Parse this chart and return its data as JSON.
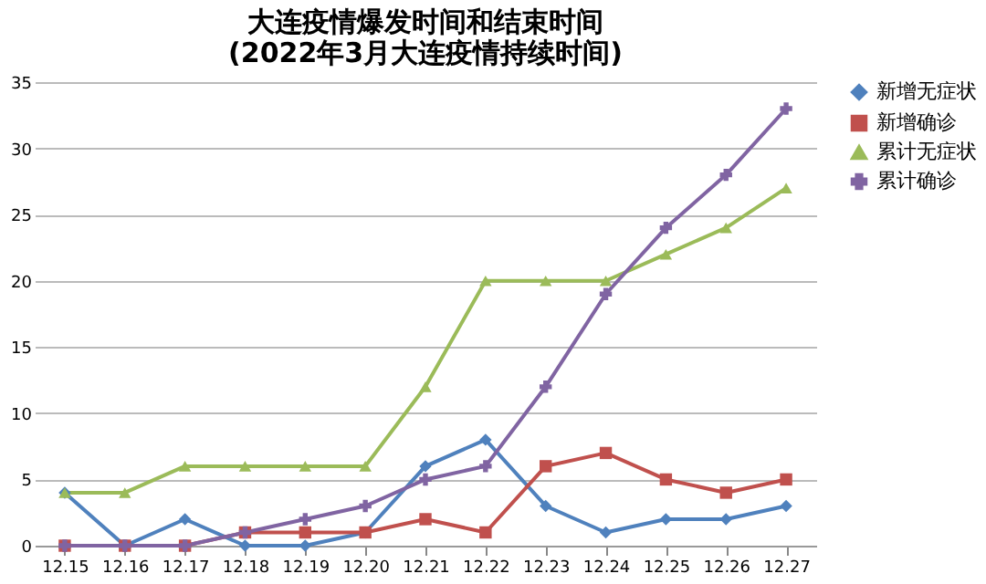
{
  "chart_data": {
    "type": "line",
    "title": "大连疫情爆发时间和结束时间(2022年3月大连疫情持续时间)",
    "categories": [
      "12.15",
      "12.16",
      "12.17",
      "12.18",
      "12.19",
      "12.20",
      "12.21",
      "12.22",
      "12.23",
      "12.24",
      "12.25",
      "12.26",
      "12.27"
    ],
    "series": [
      {
        "name": "新增无症状",
        "color": "#4f81bd",
        "marker": "diamond",
        "values": [
          4,
          0,
          2,
          0,
          0,
          1,
          6,
          8,
          3,
          1,
          2,
          2,
          3
        ]
      },
      {
        "name": "新增确诊",
        "color": "#c0504d",
        "marker": "square",
        "values": [
          0,
          0,
          0,
          1,
          1,
          1,
          2,
          1,
          6,
          7,
          5,
          4,
          5
        ]
      },
      {
        "name": "累计无症状",
        "color": "#9bbb59",
        "marker": "triangle",
        "values": [
          4,
          4,
          6,
          6,
          6,
          6,
          12,
          20,
          20,
          20,
          22,
          24,
          27
        ]
      },
      {
        "name": "累计确诊",
        "color": "#8064a2",
        "marker": "cross",
        "values": [
          0,
          0,
          0,
          1,
          2,
          3,
          5,
          6,
          12,
          19,
          24,
          28,
          33
        ]
      }
    ],
    "ylim": [
      0,
      35
    ],
    "yticks": [
      0,
      5,
      10,
      15,
      20,
      25,
      30,
      35
    ],
    "grid": "y",
    "legend": "right",
    "line_style": "solid"
  }
}
